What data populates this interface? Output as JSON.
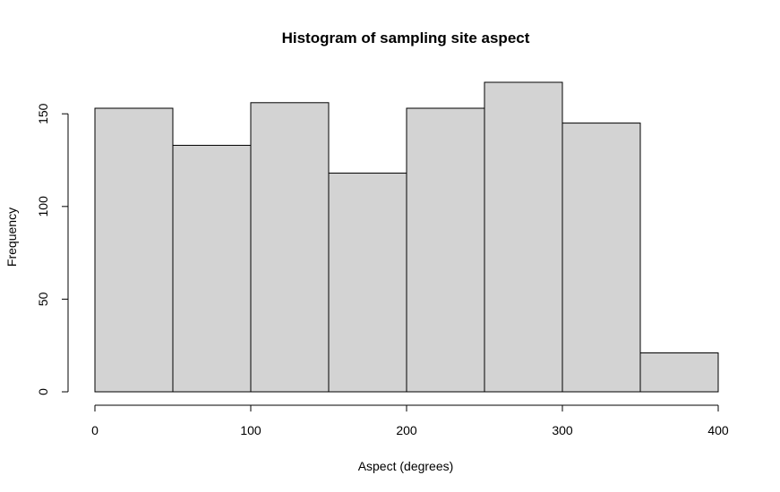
{
  "chart_data": {
    "type": "bar",
    "title": "Histogram of sampling site aspect",
    "xlabel": "Aspect (degrees)",
    "ylabel": "Frequency",
    "bins": [
      {
        "start": 0,
        "end": 50,
        "count": 153
      },
      {
        "start": 50,
        "end": 100,
        "count": 133
      },
      {
        "start": 100,
        "end": 150,
        "count": 156
      },
      {
        "start": 150,
        "end": 200,
        "count": 118
      },
      {
        "start": 200,
        "end": 250,
        "count": 153
      },
      {
        "start": 250,
        "end": 300,
        "count": 167
      },
      {
        "start": 300,
        "end": 350,
        "count": 145
      },
      {
        "start": 350,
        "end": 400,
        "count": 21
      }
    ],
    "xlim": [
      0,
      400
    ],
    "ylim": [
      0,
      167
    ],
    "x_ticks": [
      0,
      100,
      200,
      300,
      400
    ],
    "y_ticks": [
      0,
      50,
      100,
      150
    ],
    "bar_color": "#d3d3d3",
    "grid": false,
    "legend": "none"
  }
}
